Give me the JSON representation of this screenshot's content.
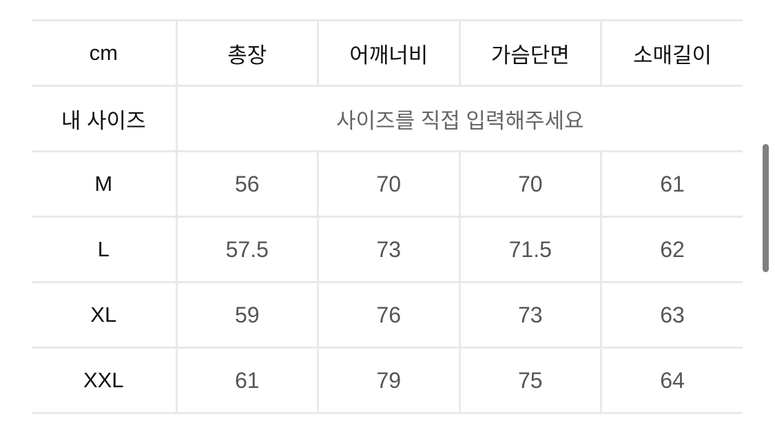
{
  "table": {
    "unit_header": "cm",
    "columns": [
      "총장",
      "어깨너비",
      "가슴단면",
      "소매길이"
    ],
    "my_size": {
      "label": "내 사이즈",
      "placeholder": "사이즈를 직접 입력해주세요"
    },
    "rows": [
      {
        "size": "M",
        "values": [
          "56",
          "70",
          "70",
          "61"
        ]
      },
      {
        "size": "L",
        "values": [
          "57.5",
          "73",
          "71.5",
          "62"
        ]
      },
      {
        "size": "XL",
        "values": [
          "59",
          "76",
          "73",
          "63"
        ]
      },
      {
        "size": "XXL",
        "values": [
          "61",
          "79",
          "75",
          "64"
        ]
      }
    ]
  },
  "colors": {
    "border": "#e9e9e9",
    "value_text": "#555555",
    "scrollbar": "#808080"
  }
}
